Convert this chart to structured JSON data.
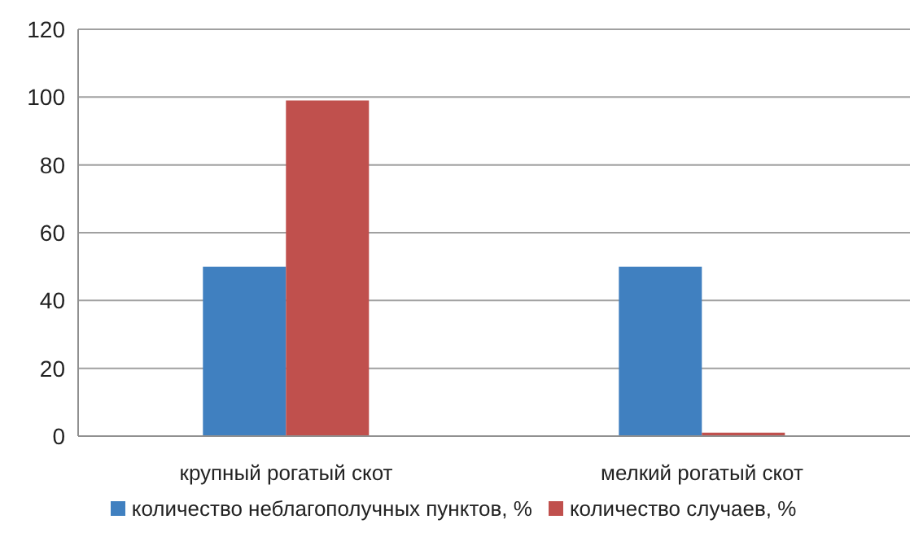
{
  "chart_data": {
    "type": "bar",
    "categories": [
      "крупный рогатый скот",
      "мелкий рогатый скот"
    ],
    "series": [
      {
        "name": "количество неблагополучных пунктов, %",
        "color": "#4080c0",
        "values": [
          50,
          50
        ]
      },
      {
        "name": "количество случаев, %",
        "color": "#c0504d",
        "values": [
          99,
          1
        ]
      }
    ],
    "ylim": [
      0,
      120
    ],
    "yticks": [
      0,
      20,
      40,
      60,
      80,
      100,
      120
    ],
    "grid": "y",
    "legend": "bottom"
  }
}
